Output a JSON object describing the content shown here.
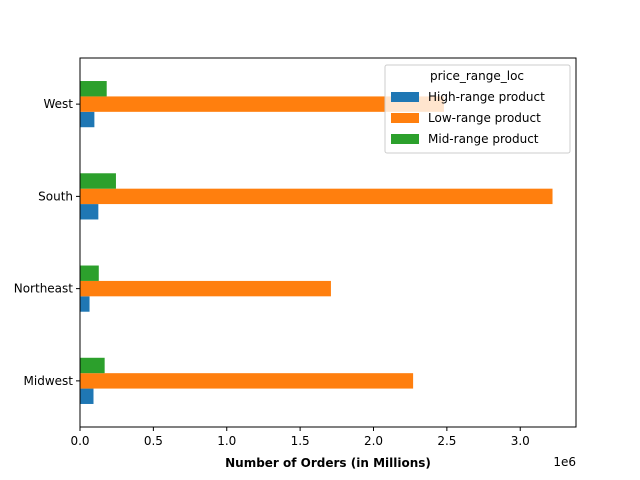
{
  "chart_data": {
    "type": "bar",
    "orientation": "horizontal",
    "categories": [
      "Midwest",
      "Northeast",
      "South",
      "West"
    ],
    "series": [
      {
        "name": "High-range product",
        "color": "#1f77b4",
        "values": [
          92000,
          65000,
          125000,
          98000
        ]
      },
      {
        "name": "Low-range product",
        "color": "#ff7f0e",
        "values": [
          2270000,
          1710000,
          3220000,
          2480000
        ]
      },
      {
        "name": "Mid-range product",
        "color": "#2ca02c",
        "values": [
          168000,
          128000,
          245000,
          182000
        ]
      }
    ],
    "xlabel": "Number of Orders (in Millions)",
    "ylabel": "",
    "xlim": [
      0,
      3380000
    ],
    "xticks": [
      0,
      500000,
      1000000,
      1500000,
      2000000,
      2500000,
      3000000
    ],
    "xtick_labels": [
      "0.0",
      "0.5",
      "1.0",
      "1.5",
      "2.0",
      "2.5",
      "3.0"
    ],
    "offset_text": "1e6",
    "legend": {
      "title": "price_range_loc",
      "placement": "top-right",
      "entries": [
        "High-range product",
        "Low-range product",
        "Mid-range product"
      ]
    },
    "grid": false
  }
}
